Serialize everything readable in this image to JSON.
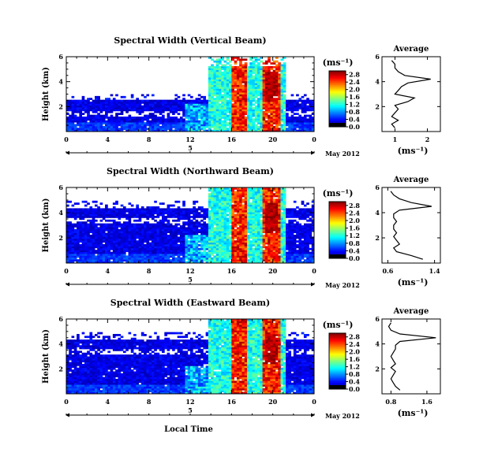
{
  "chart_data": [
    {
      "type": "heatmap",
      "title": "Spectral Width (Vertical Beam)",
      "ylabel": "Height (km)",
      "yticks": [
        "2",
        "4",
        "6"
      ],
      "ylim": [
        0,
        6
      ],
      "xticks": [
        "0",
        "4",
        "8",
        "12",
        "16",
        "20",
        "0"
      ],
      "xlim": [
        0,
        24
      ],
      "date_day": "5",
      "date_label": "May 2012",
      "colorbar": {
        "label": "(ms⁻¹)",
        "ticks": [
          "0.0",
          "0.4",
          "0.8",
          "1.2",
          "1.6",
          "2.0",
          "2.4",
          "2.8"
        ],
        "range": [
          0,
          3.0
        ]
      },
      "average": {
        "title": "Average",
        "xlabel": "(ms⁻¹)",
        "xticks": [
          "1",
          "2"
        ],
        "xlim": [
          0.6,
          2.4
        ],
        "ylim": [
          0,
          6
        ],
        "yticks": [
          "2",
          "4",
          "6"
        ],
        "profile": {
          "height": [
            0.3,
            0.6,
            0.9,
            1.2,
            1.5,
            1.8,
            2.1,
            2.4,
            2.7,
            3.0,
            3.3,
            3.6,
            3.9,
            4.2,
            4.5,
            4.8,
            5.1,
            5.4,
            5.7
          ],
          "width": [
            1.0,
            0.9,
            1.1,
            0.9,
            1.0,
            1.1,
            1.0,
            1.4,
            1.6,
            1.0,
            1.1,
            1.2,
            1.4,
            2.1,
            1.3,
            1.1,
            1.0,
            1.0,
            0.9
          ]
        }
      }
    },
    {
      "type": "heatmap",
      "title": "Spectral Width (Northward Beam)",
      "ylabel": "Height (km)",
      "yticks": [
        "2",
        "4",
        "6"
      ],
      "ylim": [
        0,
        6
      ],
      "xticks": [
        "0",
        "4",
        "8",
        "12",
        "16",
        "20",
        "0"
      ],
      "xlim": [
        0,
        24
      ],
      "date_day": "5",
      "date_label": "May 2012",
      "colorbar": {
        "label": "(ms⁻¹)",
        "ticks": [
          "0.0",
          "0.4",
          "0.8",
          "1.2",
          "1.6",
          "2.0",
          "2.4",
          "2.8"
        ],
        "range": [
          0,
          3.0
        ]
      },
      "average": {
        "title": "Average",
        "xlabel": "(ms⁻¹)",
        "xticks": [
          "0.6",
          "1.4"
        ],
        "xlim": [
          0.5,
          1.5
        ],
        "ylim": [
          0,
          6
        ],
        "yticks": [
          "2",
          "4",
          "6"
        ],
        "profile": {
          "height": [
            0.3,
            0.6,
            0.9,
            1.2,
            1.5,
            1.8,
            2.1,
            2.4,
            2.7,
            3.0,
            3.3,
            3.6,
            3.9,
            4.2,
            4.5,
            4.8,
            5.1,
            5.4,
            5.7
          ],
          "width": [
            1.2,
            1.0,
            0.75,
            0.7,
            0.8,
            0.75,
            0.7,
            0.75,
            0.7,
            0.7,
            0.75,
            0.7,
            0.7,
            0.8,
            1.35,
            1.0,
            0.8,
            0.7,
            0.65
          ]
        }
      }
    },
    {
      "type": "heatmap",
      "title": "Spectral Width (Eastward Beam)",
      "ylabel": "Height (km)",
      "yticks": [
        "2",
        "4",
        "6"
      ],
      "ylim": [
        0,
        6
      ],
      "xticks": [
        "0",
        "4",
        "8",
        "12",
        "16",
        "20",
        "0"
      ],
      "xlim": [
        0,
        24
      ],
      "date_day": "5",
      "date_label": "May 2012",
      "xlabel": "Local Time",
      "colorbar": {
        "label": "(ms⁻¹)",
        "ticks": [
          "0.0",
          "0.4",
          "0.8",
          "1.2",
          "1.6",
          "2.0",
          "2.4",
          "2.8"
        ],
        "range": [
          0,
          3.0
        ]
      },
      "average": {
        "title": "Average",
        "xlabel": "(ms⁻¹)",
        "xticks": [
          "0.8",
          "1.6"
        ],
        "xlim": [
          0.6,
          1.9
        ],
        "ylim": [
          0,
          6
        ],
        "yticks": [
          "2",
          "4",
          "6"
        ],
        "profile": {
          "height": [
            0.3,
            0.6,
            0.9,
            1.2,
            1.5,
            1.8,
            2.1,
            2.4,
            2.7,
            3.0,
            3.3,
            3.6,
            3.9,
            4.2,
            4.5,
            4.8,
            5.1,
            5.4,
            5.7
          ],
          "width": [
            1.0,
            0.9,
            0.85,
            0.8,
            0.85,
            0.9,
            0.8,
            0.9,
            0.85,
            0.8,
            0.85,
            0.9,
            0.9,
            1.0,
            1.8,
            1.0,
            0.8,
            0.75,
            0.8
          ]
        }
      }
    }
  ]
}
